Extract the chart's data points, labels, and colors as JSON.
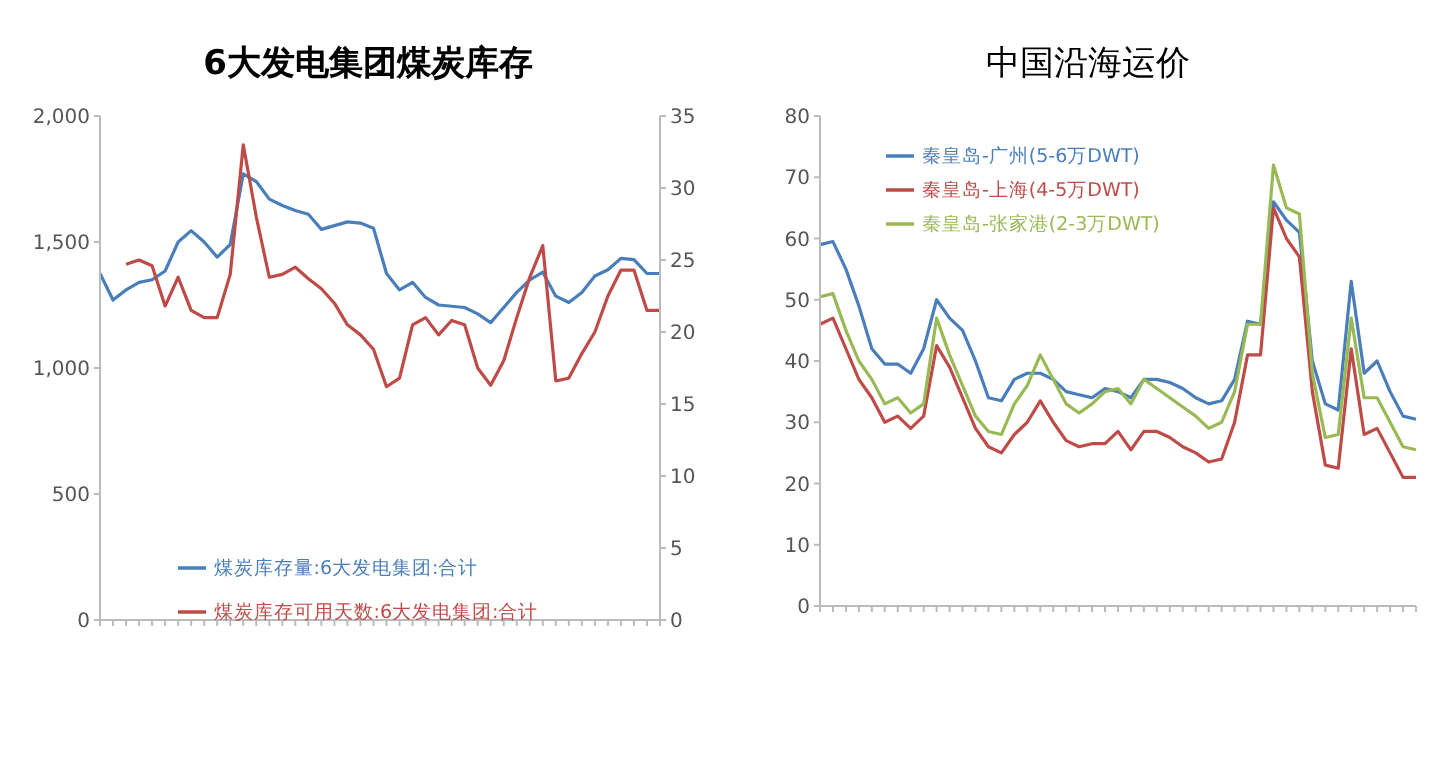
{
  "chart_data": [
    {
      "type": "line",
      "title": "6大发电集团煤炭库存",
      "categories": [
        null,
        null,
        null,
        null,
        null,
        null,
        null,
        null,
        null,
        null,
        null,
        null,
        null,
        null,
        null,
        null,
        null,
        null,
        null,
        null,
        null,
        null,
        null,
        null,
        null,
        null,
        null,
        null,
        null,
        null,
        null,
        null,
        null,
        null,
        null,
        null,
        null,
        null,
        null,
        null,
        null,
        null,
        null,
        null
      ],
      "series": [
        {
          "name": "煤炭库存量:6大发电集团:合计",
          "color": "#4a7ebb",
          "values": [
            1375,
            1270,
            1310,
            1340,
            1350,
            1385,
            1500,
            1545,
            1500,
            1440,
            1490,
            1770,
            1740,
            1670,
            1645,
            1625,
            1610,
            1550,
            1565,
            1580,
            1575,
            1555,
            1375,
            1310,
            1340,
            1280,
            1250,
            1245,
            1240,
            1215,
            1180,
            1240,
            1300,
            1350,
            1380,
            1285,
            1260,
            1300,
            1365,
            1390,
            1435,
            1430,
            1375,
            1375
          ]
        },
        {
          "name": "煤炭库存可用天数:6大发电集团:合计",
          "color": "#be4b48",
          "axis": "y2",
          "values": [
            null,
            null,
            24.7,
            25.0,
            24.6,
            21.8,
            23.8,
            21.5,
            21.0,
            21.0,
            24.0,
            33.0,
            28.0,
            23.8,
            24.0,
            24.5,
            23.7,
            23.0,
            22.0,
            20.5,
            19.8,
            18.8,
            16.2,
            16.8,
            20.5,
            21.0,
            19.8,
            20.8,
            20.5,
            17.5,
            16.3,
            18.0,
            21.0,
            23.8,
            26.0,
            16.6,
            16.8,
            18.5,
            20.0,
            22.5,
            24.3,
            24.3,
            21.5,
            21.5
          ]
        }
      ],
      "ylim": [
        0,
        2000
      ],
      "yticks": [
        0,
        500,
        {
          "value": 1000,
          "label": "1,000"
        },
        {
          "value": 1500,
          "label": "1,500"
        },
        {
          "value": 2000,
          "label": "2,000"
        }
      ],
      "y2lim": [
        0,
        35
      ],
      "y2ticks": [
        0,
        5,
        10,
        15,
        20,
        25,
        30,
        35
      ],
      "legend": "bottom",
      "grid": false,
      "marker": "none",
      "line_style": "solid"
    },
    {
      "type": "line",
      "title": "中国沿海运价",
      "categories": [
        null,
        null,
        null,
        null,
        null,
        null,
        null,
        null,
        null,
        null,
        null,
        null,
        null,
        null,
        null,
        null,
        null,
        null,
        null,
        null,
        null,
        null,
        null,
        null,
        null,
        null,
        null,
        null,
        null,
        null,
        null,
        null,
        null,
        null,
        null,
        null,
        null,
        null,
        null,
        null,
        null,
        null,
        null,
        null,
        null,
        null,
        null
      ],
      "series": [
        {
          "name": "秦皇岛-广州(5-6万DWT)",
          "color": "#4a7ebb",
          "values": [
            59,
            59.5,
            55,
            49,
            42,
            39.5,
            39.5,
            38,
            42,
            50,
            47,
            45,
            40,
            34,
            33.5,
            37,
            38,
            38,
            37,
            35,
            34.5,
            34,
            35.5,
            35,
            34,
            37,
            37,
            36.5,
            35.5,
            34,
            33,
            33.5,
            37,
            46.5,
            46,
            66,
            63,
            61,
            40,
            33,
            32,
            53,
            38,
            40,
            35,
            31,
            30.5
          ]
        },
        {
          "name": "秦皇岛-上海(4-5万DWT)",
          "color": "#be4b48",
          "values": [
            46,
            47,
            42,
            37,
            34,
            30,
            31,
            29,
            31,
            42.5,
            39,
            34,
            29,
            26,
            25,
            28,
            30,
            33.5,
            30,
            27,
            26,
            26.5,
            26.5,
            28.5,
            25.5,
            28.5,
            28.5,
            27.5,
            26,
            25,
            23.5,
            24,
            30,
            41,
            41,
            65,
            60,
            57,
            35,
            23,
            22.5,
            42,
            28,
            29,
            25,
            21,
            21
          ]
        },
        {
          "name": "秦皇岛-张家港(2-3万DWT)",
          "color": "#98b954",
          "values": [
            50.5,
            51,
            45,
            40,
            37,
            33,
            34,
            31.5,
            33,
            47,
            41,
            36,
            31,
            28.5,
            28,
            33,
            36,
            41,
            37,
            33,
            31.5,
            33,
            35,
            35.5,
            33,
            37,
            35.5,
            34,
            32.5,
            31,
            29,
            30,
            35,
            46,
            46,
            72,
            65,
            64,
            38,
            27.5,
            28,
            47,
            34,
            34,
            30,
            26,
            25.5
          ]
        }
      ],
      "ylim": [
        0,
        80
      ],
      "yticks": [
        0,
        10,
        20,
        30,
        40,
        50,
        60,
        70,
        80
      ],
      "legend": "top left",
      "grid": false,
      "marker": "none",
      "line_style": "solid"
    }
  ]
}
